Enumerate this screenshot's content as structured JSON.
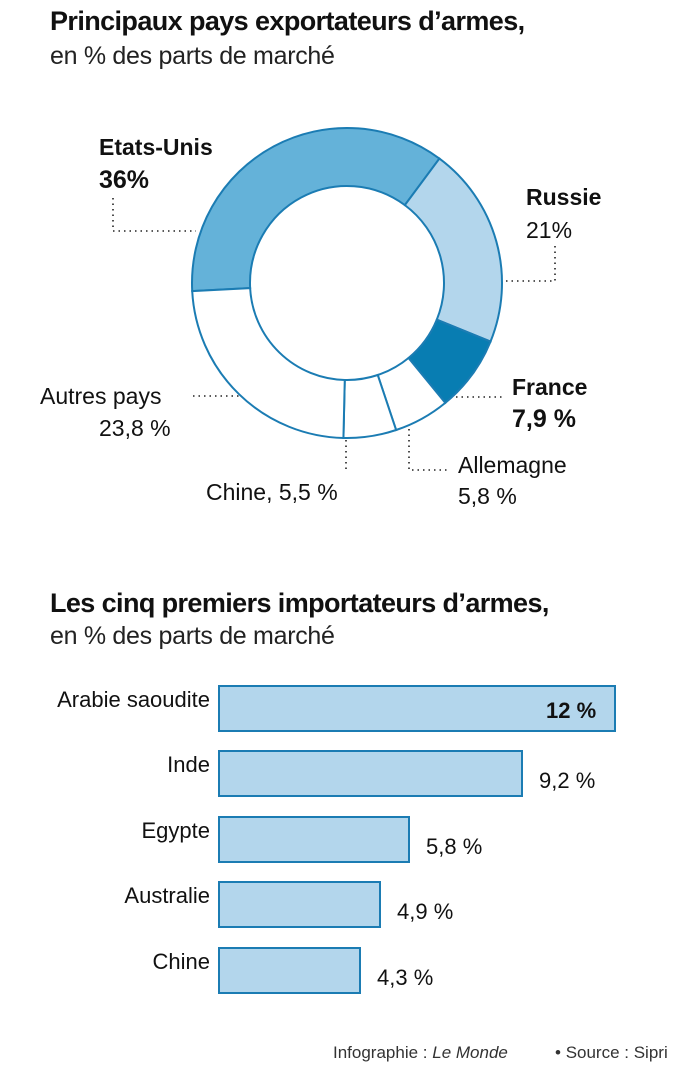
{
  "chart_data": [
    {
      "type": "pie",
      "variant": "donut",
      "title": "Principaux pays exportateurs d’armes,",
      "subtitle": "en % des parts de marché",
      "categories": [
        "Etats-Unis",
        "Russie",
        "France",
        "Allemagne",
        "Chine",
        "Autres pays"
      ],
      "values": [
        36,
        21,
        7.9,
        5.8,
        5.5,
        23.8
      ],
      "value_labels": [
        "36%",
        "21%",
        "7,9 %",
        "5,8 %",
        "5,5 %",
        "23,8 %"
      ],
      "colors": [
        "#64b2d9",
        "#b3d6ec",
        "#087db2",
        "#ffffff",
        "#ffffff",
        "#ffffff"
      ],
      "stroke_color": "#1b7cb3",
      "legend": "none (direct labels)"
    },
    {
      "type": "bar",
      "orientation": "horizontal",
      "title": "Les cinq premiers importateurs d’armes,",
      "subtitle": "en % des parts de marché",
      "categories": [
        "Arabie saoudite",
        "Inde",
        "Egypte",
        "Australie",
        "Chine"
      ],
      "values": [
        12,
        9.2,
        5.8,
        4.9,
        4.3
      ],
      "value_labels": [
        "12 %",
        "9,2 %",
        "5,8 %",
        "4,9 %",
        "4,3 %"
      ],
      "bar_color": "#b3d6ec",
      "bar_stroke": "#1b7cb3",
      "xlabel": "",
      "ylabel": "",
      "grid": false
    }
  ],
  "donut": {
    "title": "Principaux pays exportateurs d’armes,",
    "subtitle": "en % des parts de marché",
    "labels": {
      "us_name": "Etats-Unis",
      "us_value": "36%",
      "russia_name": "Russie",
      "russia_value": "21%",
      "france_name": "France",
      "france_value": "7,9 %",
      "germany_name": "Allemagne",
      "germany_value": "5,8 %",
      "china": "Chine, 5,5 %",
      "others_name": "Autres pays",
      "others_value": "23,8 %"
    }
  },
  "bars": {
    "title": "Les cinq premiers importateurs d’armes,",
    "subtitle": "en % des parts de marché",
    "rows": [
      {
        "name": "Arabie saoudite",
        "value": "12 %"
      },
      {
        "name": "Inde",
        "value": "9,2 %"
      },
      {
        "name": "Egypte",
        "value": "5,8 %"
      },
      {
        "name": "Australie",
        "value": "4,9 %"
      },
      {
        "name": "Chine",
        "value": "4,3 %"
      }
    ]
  },
  "footer": {
    "credit_prefix": "Infographie :",
    "credit_name": "Le Monde",
    "bullet": "•",
    "source": "Source : Sipri"
  }
}
